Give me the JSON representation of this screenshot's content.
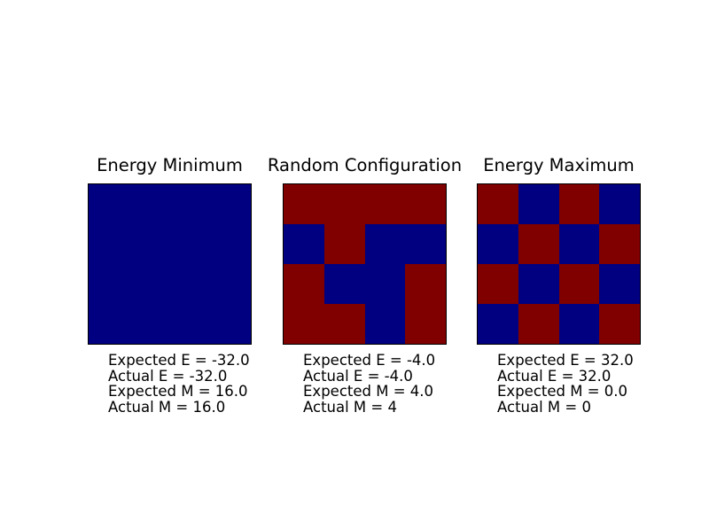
{
  "figure": {
    "background": "#ffffff",
    "text_color": "#000000",
    "border_color": "#000000"
  },
  "value_colors": {
    "1": "#000080",
    "-1": "#800000"
  },
  "chart_data": [
    {
      "type": "heatmap",
      "title": "Energy Minimum",
      "matrix": [
        [
          1,
          1,
          1,
          1
        ],
        [
          1,
          1,
          1,
          1
        ],
        [
          1,
          1,
          1,
          1
        ],
        [
          1,
          1,
          1,
          1
        ]
      ],
      "axes": "hidden",
      "grid_lines": "off",
      "annotations": [
        "Expected E = -32.0",
        "Actual E = -32.0",
        "Expected M = 16.0",
        "Actual M = 16.0"
      ]
    },
    {
      "type": "heatmap",
      "title": "Random Configuration",
      "matrix": [
        [
          -1,
          -1,
          -1,
          -1
        ],
        [
          1,
          -1,
          1,
          1
        ],
        [
          -1,
          1,
          1,
          -1
        ],
        [
          -1,
          -1,
          1,
          -1
        ]
      ],
      "axes": "hidden",
      "grid_lines": "off",
      "annotations": [
        "Expected E = -4.0",
        "Actual E = -4.0",
        "Expected M = 4.0",
        "Actual M = 4"
      ]
    },
    {
      "type": "heatmap",
      "title": "Energy Maximum",
      "matrix": [
        [
          -1,
          1,
          -1,
          1
        ],
        [
          1,
          -1,
          1,
          -1
        ],
        [
          -1,
          1,
          -1,
          1
        ],
        [
          1,
          -1,
          1,
          -1
        ]
      ],
      "axes": "hidden",
      "grid_lines": "off",
      "annotations": [
        "Expected E = 32.0",
        "Actual E = 32.0",
        "Expected M = 0.0",
        "Actual M = 0"
      ]
    }
  ]
}
